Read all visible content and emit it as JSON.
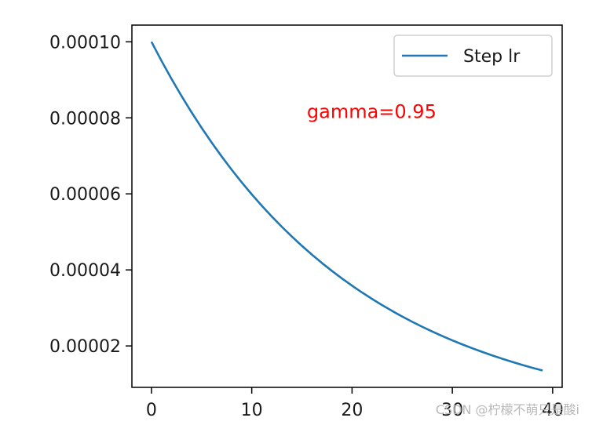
{
  "chart_data": {
    "type": "line",
    "x": [
      0,
      1,
      2,
      3,
      4,
      5,
      6,
      7,
      8,
      9,
      10,
      11,
      12,
      13,
      14,
      15,
      16,
      17,
      18,
      19,
      20,
      21,
      22,
      23,
      24,
      25,
      26,
      27,
      28,
      29,
      30,
      31,
      32,
      33,
      34,
      35,
      36,
      37,
      38,
      39
    ],
    "series": [
      {
        "name": "Step lr",
        "color": "#1f77b4",
        "values": [
          0.0001,
          9.5e-05,
          9.025e-05,
          8.57375e-05,
          8.14506e-05,
          7.73781e-05,
          7.35092e-05,
          6.98337e-05,
          6.6342e-05,
          6.30249e-05,
          5.98737e-05,
          5.688e-05,
          5.4036e-05,
          5.13342e-05,
          4.87675e-05,
          4.63291e-05,
          4.40127e-05,
          4.1812e-05,
          3.97214e-05,
          3.77354e-05,
          3.58486e-05,
          3.40562e-05,
          3.23533e-05,
          3.07357e-05,
          2.91989e-05,
          2.7739e-05,
          2.6352e-05,
          2.50344e-05,
          2.37827e-05,
          2.25936e-05,
          2.14639e-05,
          2.03907e-05,
          1.93711e-05,
          1.84026e-05,
          1.74825e-05,
          1.66083e-05,
          1.57779e-05,
          1.4989e-05,
          1.42396e-05,
          1.35276e-05
        ]
      }
    ],
    "title": "",
    "xlabel": "",
    "ylabel": "",
    "xlim": [
      -1.95,
      40.95
    ],
    "ylim": [
      9.1e-06,
      0.0001044
    ],
    "xticks": [
      0,
      10,
      20,
      30,
      40
    ],
    "xtick_labels": [
      "0",
      "10",
      "20",
      "30",
      "40"
    ],
    "yticks": [
      2e-05,
      4e-05,
      6e-05,
      8e-05,
      0.0001
    ],
    "ytick_labels": [
      "0.00002",
      "0.00004",
      "0.00006",
      "0.00008",
      "0.00010"
    ],
    "grid": false,
    "legend_position": "top-right",
    "annotations": [
      {
        "text": "gamma=0.95",
        "x": 15.5,
        "y": 8e-05,
        "color": "#ff0000"
      }
    ]
  },
  "watermark": "CSDN @柠檬不萌只是酸i"
}
